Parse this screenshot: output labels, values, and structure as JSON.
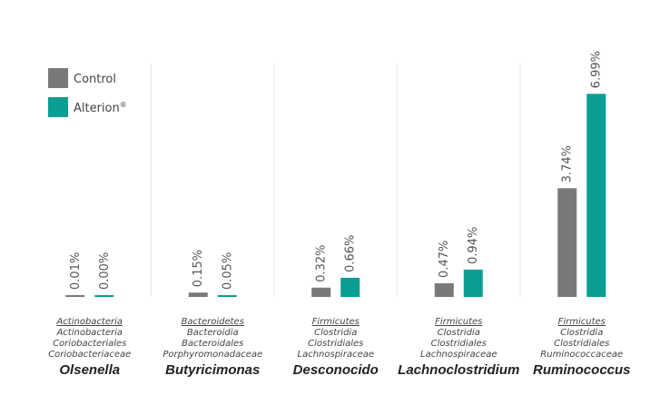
{
  "chart_data": {
    "type": "bar",
    "ylim": [
      0,
      7.3
    ],
    "legend_position": "top-left",
    "series": [
      {
        "name": "Control",
        "color": "#7a7878",
        "values": [
          0.01,
          0.15,
          0.32,
          0.47,
          3.74
        ],
        "labels": [
          "0.01%",
          "0.15%",
          "0.32%",
          "0.47%",
          "3.74%"
        ]
      },
      {
        "name": "Alterion",
        "superscript": "®",
        "color": "#0a9e94",
        "values": [
          0.0,
          0.05,
          0.66,
          0.94,
          6.99
        ],
        "labels": [
          "0.00%",
          "0.05%",
          "0.66%",
          "0.94%",
          "6.99%"
        ]
      }
    ],
    "categories": [
      {
        "genus": "Olsenella",
        "taxonomy": [
          "Actinobacteria",
          "Actinobacteria",
          "Coriobacteriales",
          "Coriobacteriaceae"
        ]
      },
      {
        "genus": "Butyricimonas",
        "taxonomy": [
          "Bacteroidetes",
          "Bacteroidia",
          "Bacteroidales",
          "Porphyromonadaceae"
        ]
      },
      {
        "genus": "Desconocido",
        "taxonomy": [
          "Firmicutes",
          "Clostridia",
          "Clostridiales",
          "Lachnospiraceae"
        ]
      },
      {
        "genus": "Lachnoclostridium",
        "taxonomy": [
          "Firmicutes",
          "Clostridia",
          "Clostridiales",
          "Lachnospiraceae"
        ]
      },
      {
        "genus": "Ruminococcus",
        "taxonomy": [
          "Firmicutes",
          "Clostridia",
          "Clostridiales",
          "Ruminococcaceae"
        ]
      }
    ],
    "grid": false
  }
}
